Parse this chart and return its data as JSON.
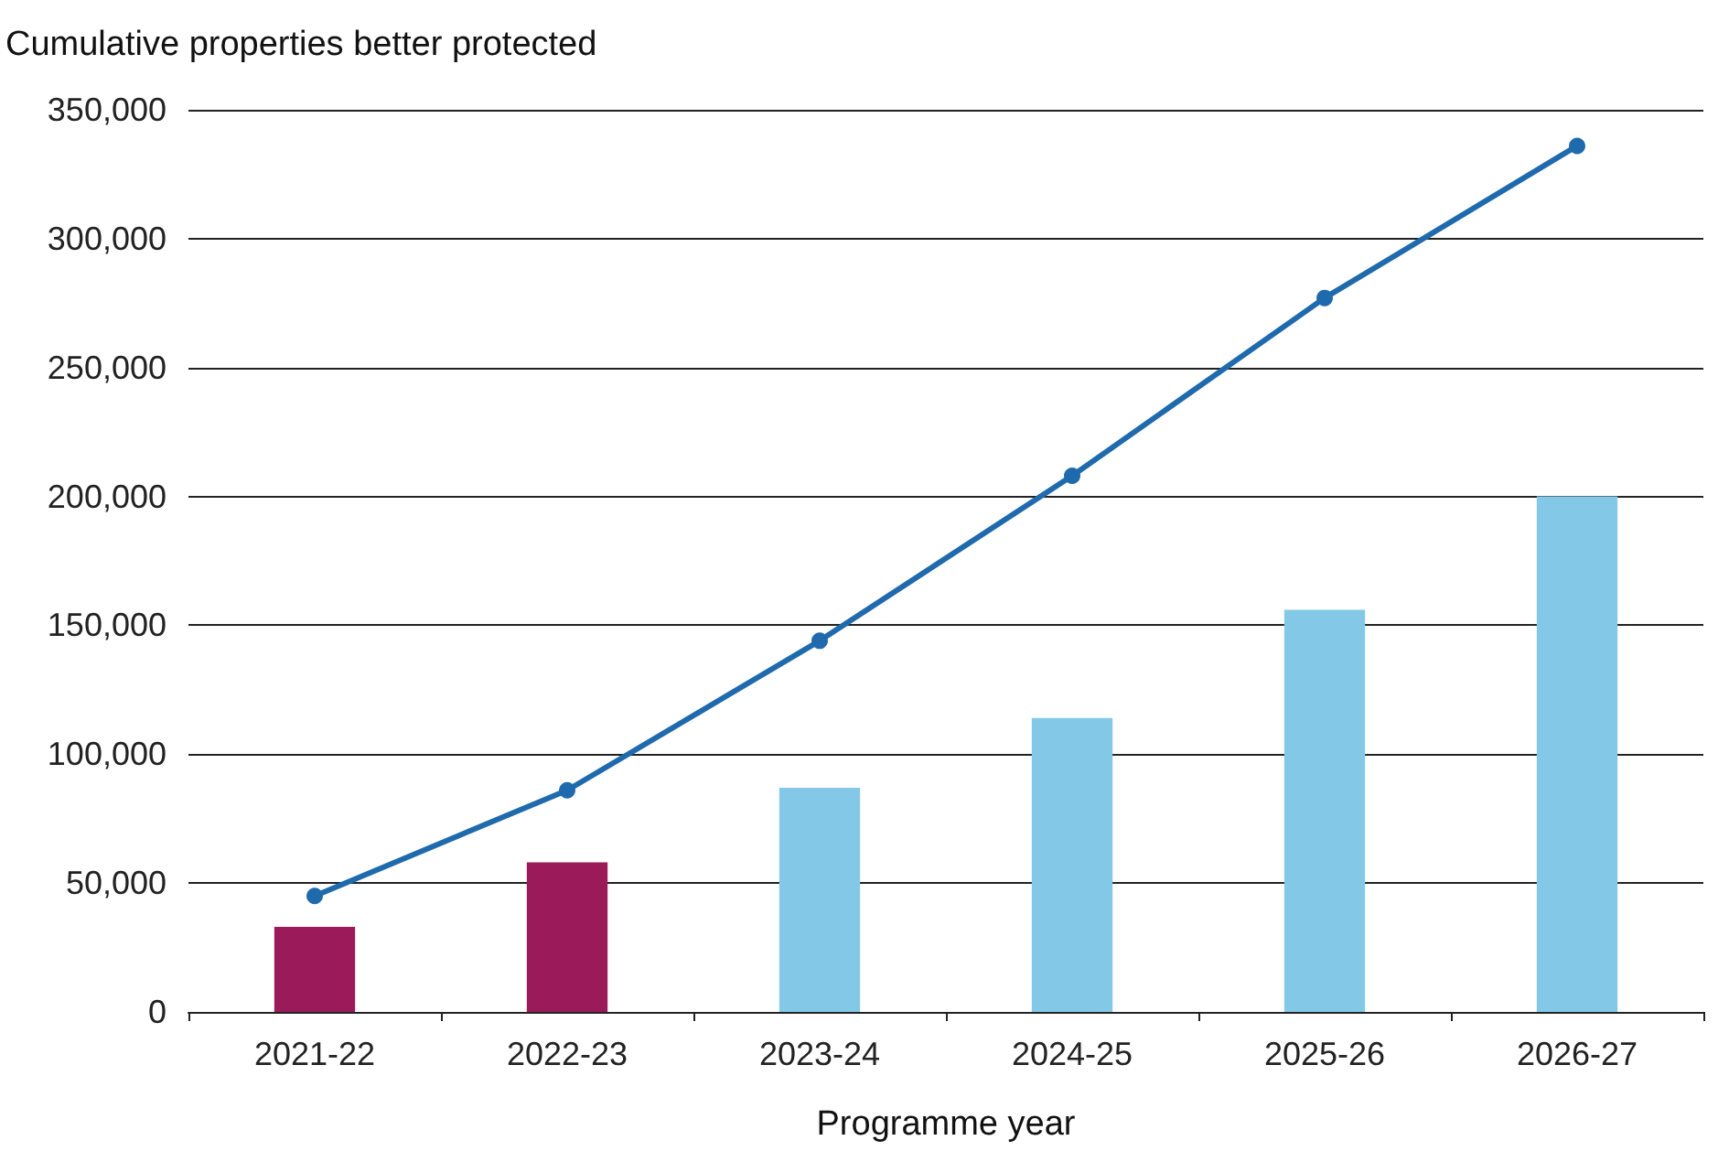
{
  "chart_data": {
    "type": "bar",
    "ylabel": "Cumulative properties better protected",
    "xlabel": "Programme year",
    "categories": [
      "2021-22",
      "2022-23",
      "2023-24",
      "2024-25",
      "2025-26",
      "2026-27"
    ],
    "series": [
      {
        "colors": [
          "#9b1b5a",
          "#9b1b5a",
          "#84c8e8",
          "#84c8e8",
          "#84c8e8",
          "#84c8e8"
        ],
        "values": [
          33000,
          58000,
          87000,
          114000,
          156000,
          200000
        ]
      },
      {
        "type": "line",
        "color": "#1f6aad",
        "marker": "circle",
        "line_style": "solid",
        "values": [
          45000,
          86000,
          144000,
          208000,
          277000,
          336000
        ]
      }
    ],
    "ylim": [
      0,
      350000
    ],
    "yticks": [
      0,
      {
        "value": 50000,
        "label": "50,000"
      },
      {
        "value": 100000,
        "label": "100,000"
      },
      {
        "value": 150000,
        "label": "150,000"
      },
      {
        "value": 200000,
        "label": "200,000"
      },
      {
        "value": 250000,
        "label": "250,000"
      },
      {
        "value": 300000,
        "label": "300,000"
      },
      {
        "value": 350000,
        "label": "350,000"
      }
    ],
    "grid": "y"
  }
}
